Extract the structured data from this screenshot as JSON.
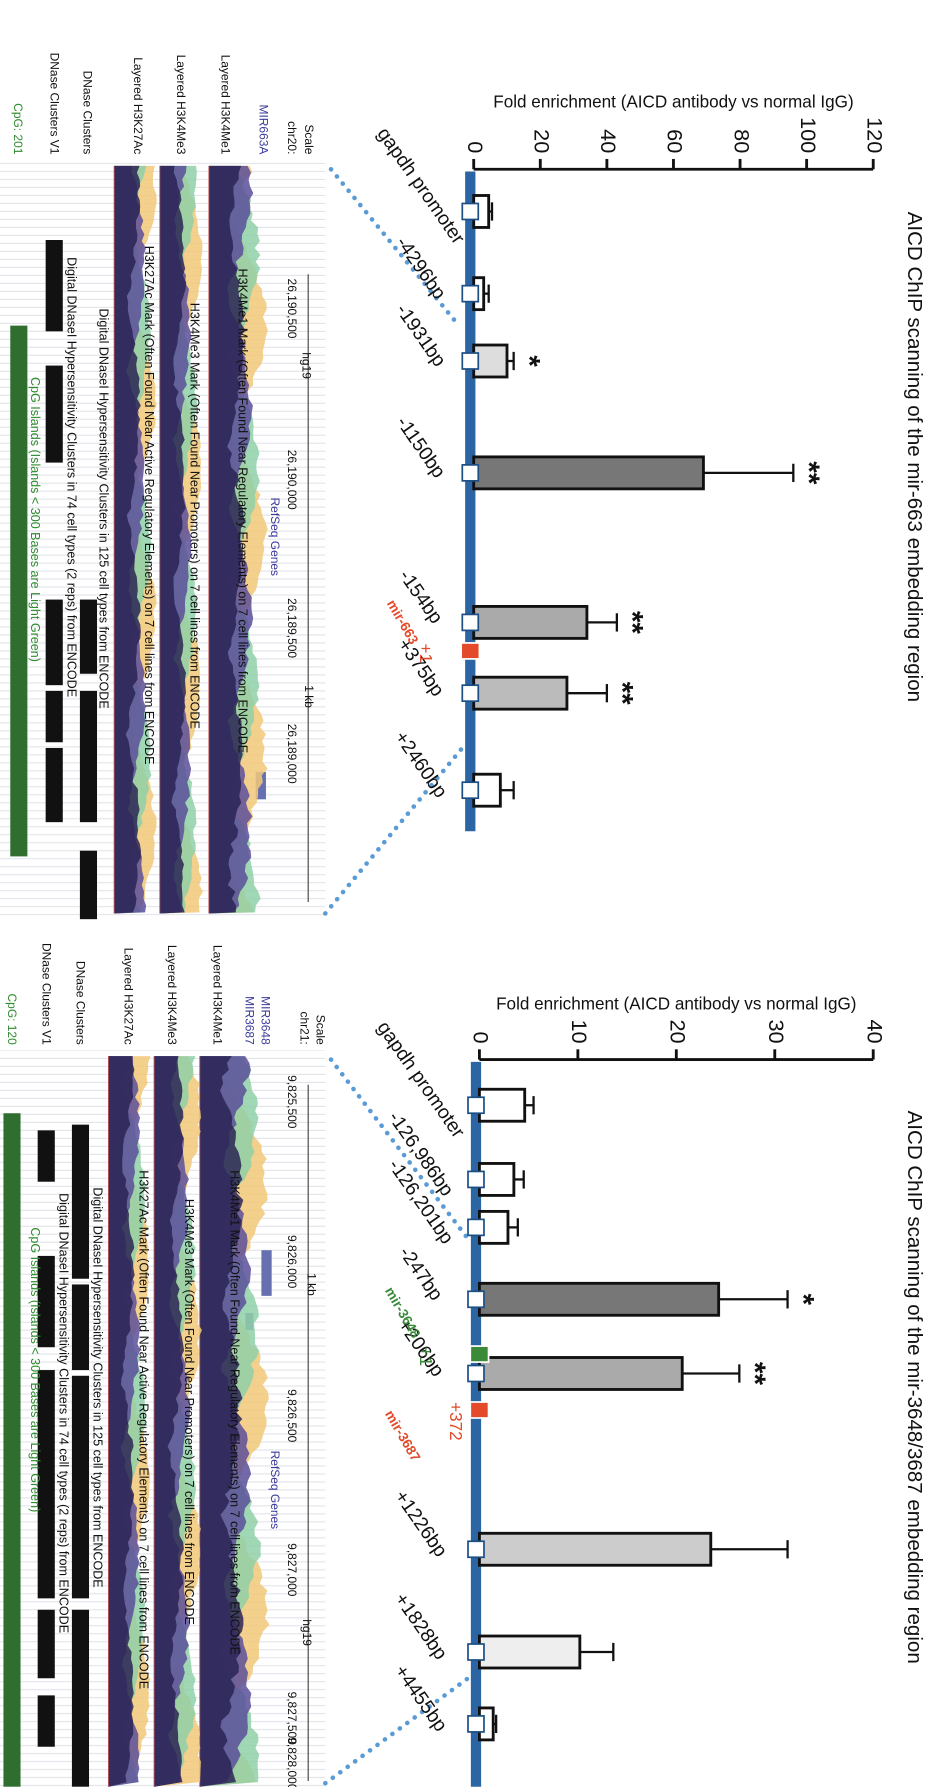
{
  "chart_data": [
    {
      "type": "bar",
      "title": "AICD ChIP scanning of the mir-663 embedding region",
      "y_label": "Fold enrichment (AICD antibody vs normal IgG)",
      "categories": [
        "gapdh promoter",
        "-4296bp",
        "-1931bp",
        "-1150bp",
        "-154bp",
        "+375bp",
        "+2460bp"
      ],
      "values": [
        4.5,
        3,
        10,
        69,
        34,
        28,
        8
      ],
      "errors": [
        1,
        1.5,
        2,
        27,
        9,
        12,
        4
      ],
      "significance": [
        null,
        null,
        "*",
        "**",
        "**",
        "**",
        null
      ],
      "colors": [
        "#ffffff",
        "#ffffff",
        "#dddddd",
        "#777777",
        "#aaaaaa",
        "#bbbbbb",
        "#ffffff"
      ],
      "axis_color": "#2b65a3",
      "ylim": [
        0,
        120
      ],
      "yticks": [
        0,
        20,
        40,
        60,
        80,
        100,
        120
      ],
      "annotations": [
        {
          "label": "mir-663",
          "site": "+1",
          "color": "#e24a2a"
        }
      ]
    },
    {
      "type": "bar",
      "title": "AICD ChIP scanning of the mir-3648/3687 embedding region",
      "y_label": "Fold enrichment (AICD antibody vs normal IgG)",
      "categories": [
        "gapdh promoter",
        "-126,986bp",
        "-126,201bp",
        "-247bp",
        "+206bp",
        "+1226bp",
        "+1828bp",
        "+4455bp"
      ],
      "values": [
        4.6,
        3.5,
        2.9,
        24.3,
        20.6,
        23.5,
        10.2,
        1.4
      ],
      "errors": [
        0.9,
        1,
        1,
        7,
        5.8,
        7.8,
        3.4,
        0.3
      ],
      "significance": [
        null,
        null,
        null,
        "*",
        "**",
        null,
        null,
        null
      ],
      "colors": [
        "#ffffff",
        "#ffffff",
        "#ffffff",
        "#777777",
        "#aaaaaa",
        "#cccccc",
        "#eeeeee",
        "#ffffff"
      ],
      "axis_color": "#2b65a3",
      "ylim": [
        0,
        40
      ],
      "yticks": [
        0,
        10,
        20,
        30,
        40
      ],
      "annotations": [
        {
          "label": "mir-3648",
          "site": "+1",
          "color": "#3a8a3a"
        },
        {
          "label": "mir-3687",
          "site": "+372",
          "color": "#e24a2a"
        }
      ]
    }
  ],
  "browsers": [
    {
      "track_labels": [
        "Scale",
        "chr20:",
        "MIR663A",
        "Layered H3K4Me1",
        "Layered H3K4Me3",
        "Layered H3K27Ac",
        "DNase Clusters",
        "DNase Clusters V1",
        "CpG: 201"
      ],
      "coordinates": [
        "26,190,500",
        "hg19",
        "26,190,000",
        "RefSeq Genes",
        "26,189,500",
        "1 kb",
        "26,189,000"
      ],
      "descriptions": [
        "H3K4Me1 Mark (Often Found Near Regulatory Elements) on 7 cell lines from ENCODE",
        "H3K4Me3 Mark (Often Found Near Promoters) on 7 cell lines from ENCODE",
        "H3K27Ac Mark (Often Found Near Active Regulatory Elements) on 7 cell lines from ENCODE",
        "Digital DNaseI Hypersensitivity Clusters in 125 cell types from ENCODE",
        "Digital DNaseI Hypersensitivity Clusters in 74 cell types (2 reps) from ENCODE",
        "CpG Islands (Islands < 300 Bases are Light Green)"
      ]
    },
    {
      "track_labels": [
        "Scale",
        "chr21:",
        "MIR3648",
        "MIR3687",
        "Layered H3K4Me1",
        "Layered H3K4Me3",
        "Layered H3K27Ac",
        "DNase Clusters",
        "DNase Clusters V1",
        "CpG: 120"
      ],
      "coordinates": [
        "9,825,500",
        "9,826,000",
        "1 kb",
        "9,826,500",
        "RefSeq Genes",
        "9,827,000",
        "hg19",
        "9,827,500",
        "9,828,000"
      ],
      "descriptions": [
        "H3K4Me1 Mark (Often Found Near Regulatory Elements) on 7 cell lines from ENCODE",
        "H3K4Me3 Mark (Often Found Near Promoters) on 7 cell lines from ENCODE",
        "H3K27Ac Mark (Often Found Near Active Regulatory Elements) on 7 cell lines from ENCODE",
        "Digital DNaseI Hypersensitivity Clusters in 125 cell types from ENCODE",
        "Digital DNaseI Hypersensitivity Clusters in 74 cell types (2 reps) from ENCODE",
        "CpG Islands (Islands < 300 Bases are Light Green)"
      ]
    }
  ]
}
